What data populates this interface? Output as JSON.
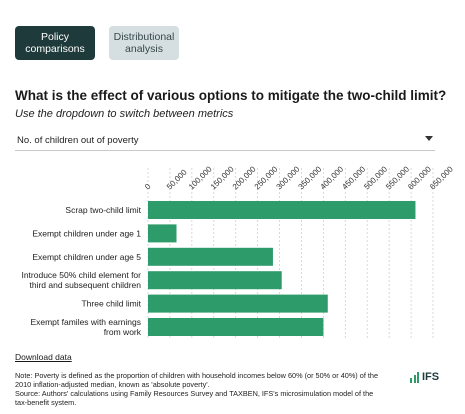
{
  "tabs": [
    {
      "label": "Policy\ncomparisons",
      "active": true
    },
    {
      "label": "Distributional\nanalysis",
      "active": false
    }
  ],
  "title": "What is the effect of various options to mitigate the two-child limit?",
  "subtitle": "Use the dropdown to switch between metrics",
  "dropdown": {
    "selected": "No. of children out of poverty"
  },
  "download_label": "Download data",
  "note_lines": [
    "Note: Poverty is defined as the proportion of children with household incomes below 60% (or 50% or 40%) of the",
    "2010 inflation-adjusted median, known as 'absolute poverty'.",
    "Source: Authors' calculations using Family Resources Survey and TAXBEN, IFS's microsimulation model of the",
    "tax-benefit system."
  ],
  "logo_text": "IFS",
  "chart_data": {
    "type": "bar",
    "orientation": "horizontal",
    "categories": [
      [
        "Scrap two-child limit"
      ],
      [
        "Exempt children under age 1"
      ],
      [
        "Exempt children under age 5"
      ],
      [
        "Introduce 50% child element for",
        "third and subsequent children"
      ],
      [
        "Three child limit"
      ],
      [
        "Exempt familes with earnings",
        "from work"
      ]
    ],
    "values": [
      610000,
      65000,
      285000,
      305000,
      410000,
      400000
    ],
    "xlim": [
      0,
      650000
    ],
    "ticks": [
      0,
      50000,
      100000,
      150000,
      200000,
      250000,
      300000,
      350000,
      400000,
      450000,
      500000,
      550000,
      600000,
      650000
    ],
    "tick_labels": [
      "0",
      "50,000",
      "100,000",
      "150,000",
      "200,000",
      "250,000",
      "300,000",
      "350,000",
      "400,000",
      "450,000",
      "500,000",
      "550,000",
      "600,000",
      "650,000"
    ],
    "bar_color": "#2e9b6b",
    "grid": true,
    "grid_style": "dashed"
  }
}
